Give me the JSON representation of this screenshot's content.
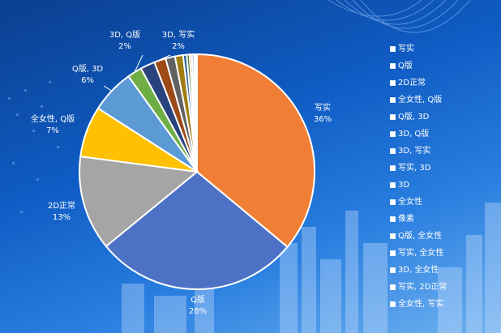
{
  "chart_data": {
    "type": "pie",
    "title": "",
    "slices": [
      {
        "label": "写实",
        "value": 36,
        "pct_label": "36%",
        "color": "#f07f35"
      },
      {
        "label": "Q版",
        "value": 28,
        "pct_label": "28%",
        "color": "#4d72c5"
      },
      {
        "label": "2D正常",
        "value": 13,
        "pct_label": "13%",
        "color": "#a5a5a5"
      },
      {
        "label": "全女性, Q版",
        "value": 7,
        "pct_label": "7%",
        "color": "#fec000"
      },
      {
        "label": "Q版, 3D",
        "value": 6,
        "pct_label": "6%",
        "color": "#5c9ad6"
      },
      {
        "label": "3D, Q版",
        "value": 2,
        "pct_label": "2%",
        "color": "#6fae44"
      },
      {
        "label": "3D, 写实",
        "value": 2,
        "pct_label": "2%",
        "color": "#29437d"
      },
      {
        "label": "写实, 3D",
        "value": 1.6,
        "pct_label": "",
        "color": "#9c4a17"
      },
      {
        "label": "3D",
        "value": 1.3,
        "pct_label": "",
        "color": "#626262"
      },
      {
        "label": "全女性",
        "value": 1.1,
        "pct_label": "",
        "color": "#a07d10"
      },
      {
        "label": "像素",
        "value": 0.5,
        "pct_label": "",
        "color": "#2d5f9a"
      },
      {
        "label": "Q版, 全女性",
        "value": 0.4,
        "pct_label": "",
        "color": "#4e7f32"
      },
      {
        "label": "写实, 全女性",
        "value": 0.3,
        "pct_label": "",
        "color": "#f4a36a"
      },
      {
        "label": "3D, 全女性",
        "value": 0.3,
        "pct_label": "",
        "color": "#8aa7df"
      },
      {
        "label": "写实, 2D正常",
        "value": 0.2,
        "pct_label": "",
        "color": "#c9c9c9"
      },
      {
        "label": "全女性, 写实",
        "value": 0.2,
        "pct_label": "",
        "color": "#ffd966"
      }
    ],
    "legend_position": "right"
  }
}
